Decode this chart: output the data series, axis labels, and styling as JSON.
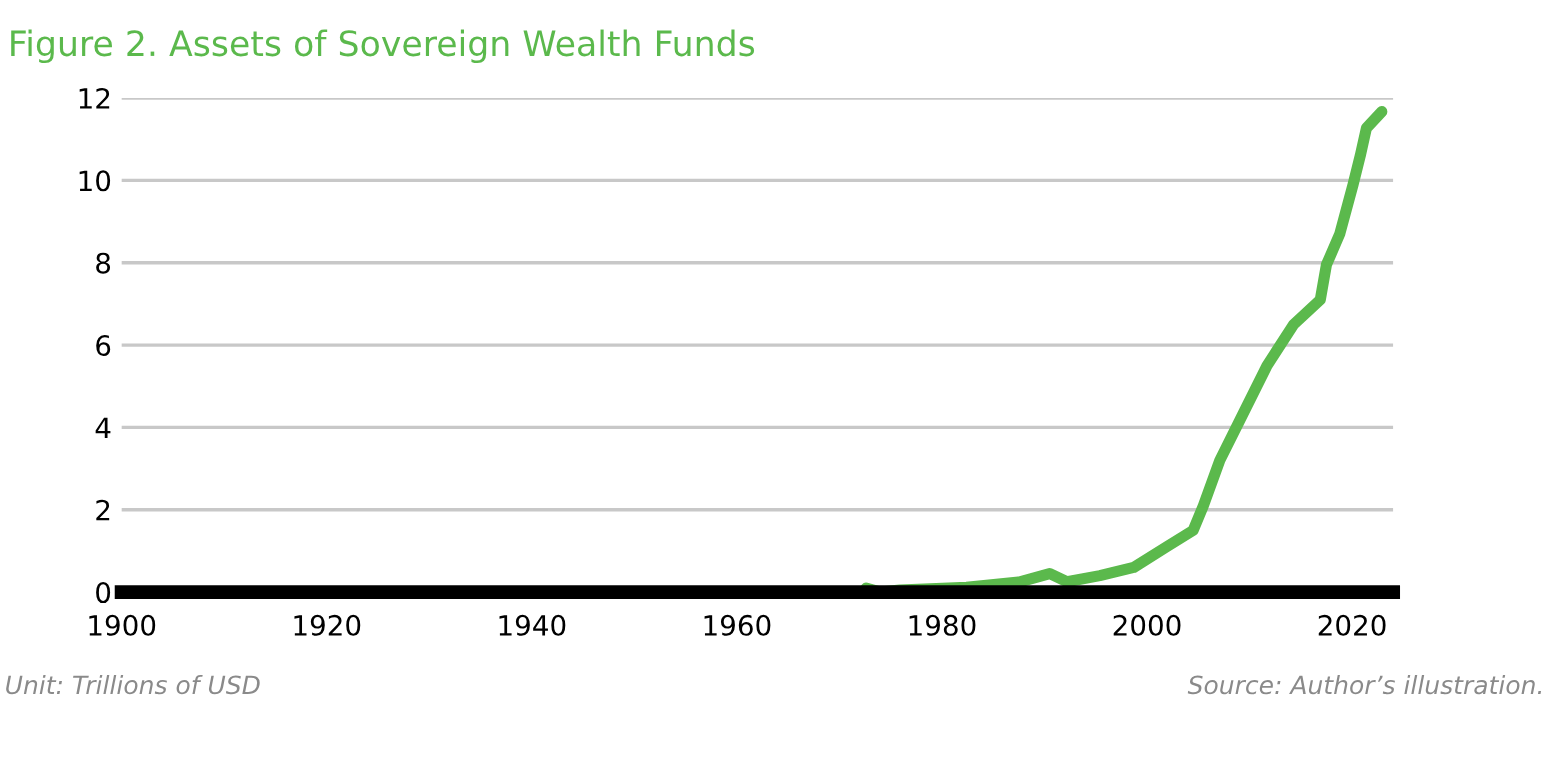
{
  "chart_data": {
    "type": "line",
    "title": "Figure 2. Assets of Sovereign Wealth Funds",
    "x": [
      1972.6,
      1974,
      1975.9,
      1982.4,
      1987.6,
      1990.5,
      1992.2,
      1995.4,
      1998.7,
      2001.9,
      2004.5,
      2005.5,
      2007.1,
      2009.1,
      2011.7,
      2014.3,
      2016.9,
      2017.5,
      2018.8,
      2020.1,
      2020.8,
      2021.4,
      2022.9
    ],
    "series": [
      {
        "color": "#5bb94c",
        "values": [
          0.1,
          0,
          0.05,
          0.12,
          0.25,
          0.45,
          0.25,
          0.4,
          0.6,
          1.1,
          1.5,
          2.1,
          3.2,
          4.2,
          5.5,
          6.5,
          7.1,
          7.95,
          8.7,
          9.9,
          10.6,
          11.27,
          11.67
        ]
      }
    ],
    "xlim": [
      1900,
      2024
    ],
    "ylim": [
      0,
      12
    ],
    "xticks": [
      1900,
      1920,
      1940,
      1960,
      1980,
      2000,
      2020
    ],
    "yticks": [
      0,
      2,
      4,
      6,
      8,
      10,
      12
    ],
    "grid": "y",
    "legend": false,
    "marker": "none",
    "line_style": "solid",
    "annotations": [
      "Unit: Trillions of USD",
      "Source: Author’s illustration."
    ]
  }
}
